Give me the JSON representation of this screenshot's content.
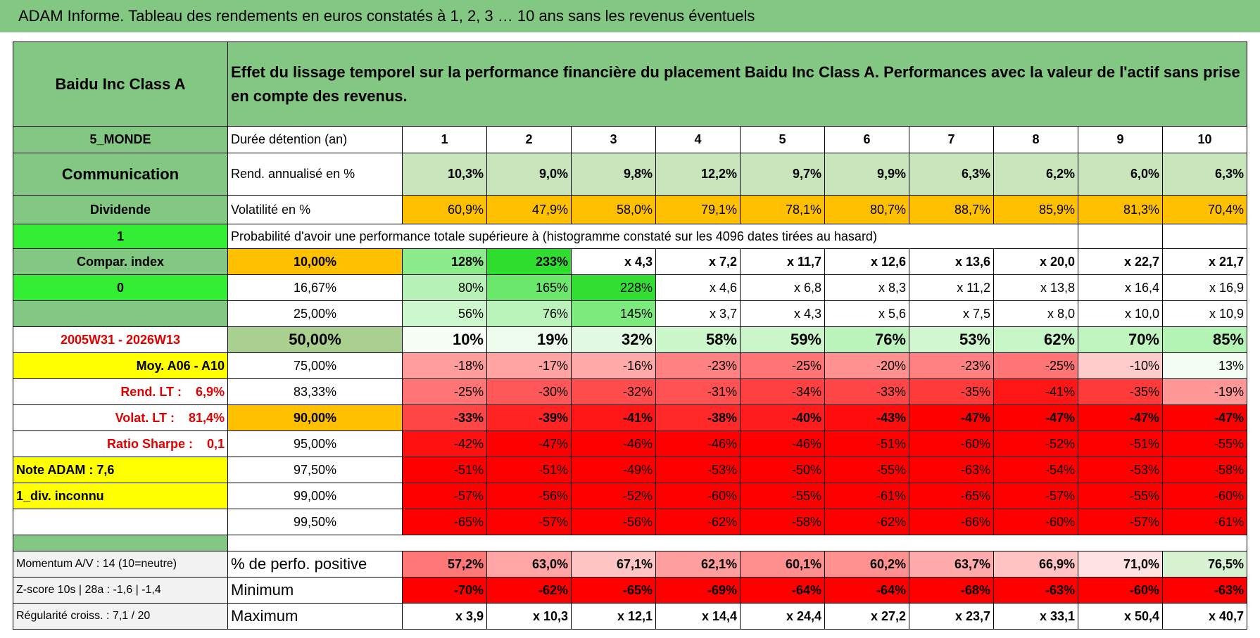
{
  "header": {
    "title": "ADAM Informe. Tableau des rendements en euros constatés à 1, 2, 3 … 10 ans sans les revenus éventuels"
  },
  "left": {
    "name": "Baidu Inc Class A",
    "zone": "5_MONDE",
    "sector": "Communication",
    "dividend": "Dividende",
    "flag": "1"
  },
  "description": "Effet du lissage temporel sur la performance financière du placement Baidu Inc Class A. Performances avec la valeur de l'actif sans prise en compte des revenus.",
  "table": {
    "years_label": "Durée détention (an)",
    "years": [
      1,
      2,
      3,
      4,
      5,
      6,
      7,
      8,
      9,
      10
    ],
    "rend_label": "Rend. annualisé en %",
    "rend": [
      "10,3%",
      "9,0%",
      "9,8%",
      "12,2%",
      "9,7%",
      "9,9%",
      "6,3%",
      "6,2%",
      "6,0%",
      "6,3%"
    ],
    "vol_label": "Volatilité en %",
    "vol": [
      "60,9%",
      "47,9%",
      "58,0%",
      "79,1%",
      "78,1%",
      "80,7%",
      "88,7%",
      "85,9%",
      "81,3%",
      "70,4%"
    ],
    "prob_label": "Probabilité d'avoir une performance totale supérieure à (histogramme constaté sur les 4096 dates tirées au hasard)",
    "rows": [
      {
        "side": "Compar. index",
        "level": "10,00%",
        "cells": [
          "128%",
          "233%",
          "x 4,3",
          "x 7,2",
          "x 11,7",
          "x 12,6",
          "x 13,6",
          "x 20,0",
          "x 22,7",
          "x 21,7"
        ]
      },
      {
        "side": "0",
        "level": "16,67%",
        "cells": [
          "80%",
          "165%",
          "228%",
          "x 4,6",
          "x 6,8",
          "x 8,3",
          "x 11,2",
          "x 13,8",
          "x 16,4",
          "x 16,9"
        ]
      },
      {
        "side": null,
        "level": "25,00%",
        "cells": [
          "56%",
          "76%",
          "145%",
          "x 3,7",
          "x 4,3",
          "x 5,6",
          "x 7,5",
          "x 8,0",
          "x 10,0",
          "x 10,9"
        ]
      },
      {
        "side": "2005W31 - 2026W13",
        "level": "50,00%",
        "cells": [
          "10%",
          "19%",
          "32%",
          "58%",
          "59%",
          "76%",
          "53%",
          "62%",
          "70%",
          "85%"
        ]
      },
      {
        "side": "Moy. A06 - A10",
        "level": "75,00%",
        "cells": [
          "-18%",
          "-17%",
          "-16%",
          "-23%",
          "-25%",
          "-20%",
          "-23%",
          "-25%",
          "-10%",
          "13%"
        ]
      },
      {
        "side": "Rend. LT :    6,9%",
        "level": "83,33%",
        "cells": [
          "-25%",
          "-30%",
          "-32%",
          "-31%",
          "-34%",
          "-33%",
          "-35%",
          "-41%",
          "-35%",
          "-19%"
        ]
      },
      {
        "side": "Volat. LT :    81,4%",
        "level": "90,00%",
        "cells": [
          "-33%",
          "-39%",
          "-41%",
          "-38%",
          "-40%",
          "-43%",
          "-47%",
          "-47%",
          "-47%",
          "-47%"
        ]
      },
      {
        "side": "Ratio Sharpe :    0,1",
        "level": "95,00%",
        "cells": [
          "-42%",
          "-47%",
          "-46%",
          "-46%",
          "-46%",
          "-51%",
          "-60%",
          "-52%",
          "-51%",
          "-55%"
        ]
      },
      {
        "side": "Note ADAM : 7,6",
        "level": "97,50%",
        "cells": [
          "-51%",
          "-51%",
          "-49%",
          "-53%",
          "-50%",
          "-55%",
          "-63%",
          "-54%",
          "-53%",
          "-58%"
        ]
      },
      {
        "side": "1_div. inconnu",
        "level": "99,00%",
        "cells": [
          "-57%",
          "-56%",
          "-52%",
          "-60%",
          "-55%",
          "-61%",
          "-65%",
          "-57%",
          "-55%",
          "-60%"
        ]
      },
      {
        "side": null,
        "level": "99,50%",
        "cells": [
          "-65%",
          "-57%",
          "-56%",
          "-62%",
          "-58%",
          "-62%",
          "-66%",
          "-60%",
          "-57%",
          "-61%"
        ]
      }
    ],
    "bottom": [
      {
        "side": "Momentum A/V : 14 (10=neutre)",
        "label": "% de perfo. positive",
        "cells": [
          "57,2%",
          "63,0%",
          "67,1%",
          "62,1%",
          "60,1%",
          "60,2%",
          "63,7%",
          "66,9%",
          "71,0%",
          "76,5%"
        ]
      },
      {
        "side": "Z-score 10s | 28a : -1,6 | -1,4",
        "label": "Minimum",
        "cells": [
          "-70%",
          "-62%",
          "-65%",
          "-69%",
          "-64%",
          "-64%",
          "-68%",
          "-63%",
          "-60%",
          "-63%"
        ]
      },
      {
        "side": "Régularité croiss. : 7,1 / 20",
        "label": "Maximum",
        "cells": [
          "x 3,9",
          "x 10,3",
          "x 12,1",
          "x 14,4",
          "x 24,4",
          "x 27,2",
          "x 23,7",
          "x 33,1",
          "x 50,4",
          "x 40,7"
        ]
      }
    ]
  }
}
